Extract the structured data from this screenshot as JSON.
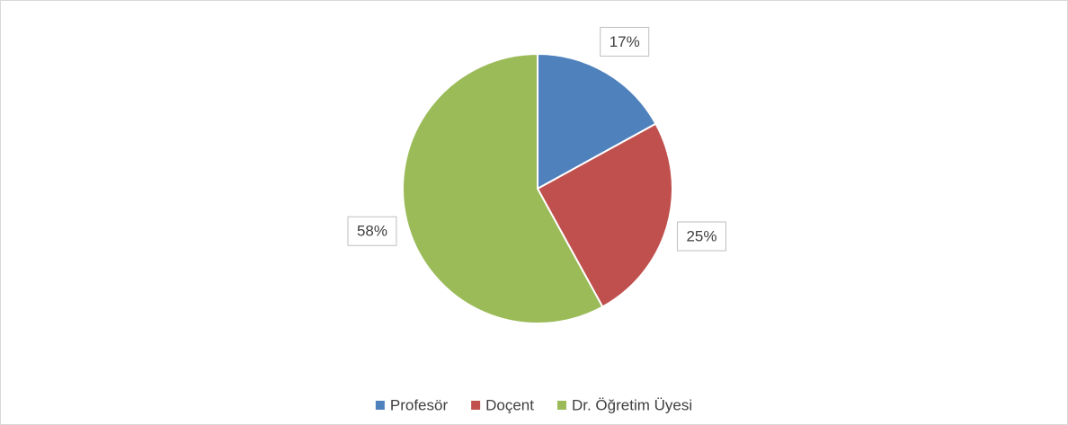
{
  "chart_data": {
    "type": "pie",
    "categories": [
      "Profesör",
      "Doçent",
      "Dr. Öğretim Üyesi"
    ],
    "values": [
      17,
      25,
      58
    ],
    "value_labels": [
      "17%",
      "25%",
      "58%"
    ],
    "colors": [
      "#4f81bd",
      "#c0504d",
      "#9bbb59"
    ],
    "legend": "bottom"
  }
}
